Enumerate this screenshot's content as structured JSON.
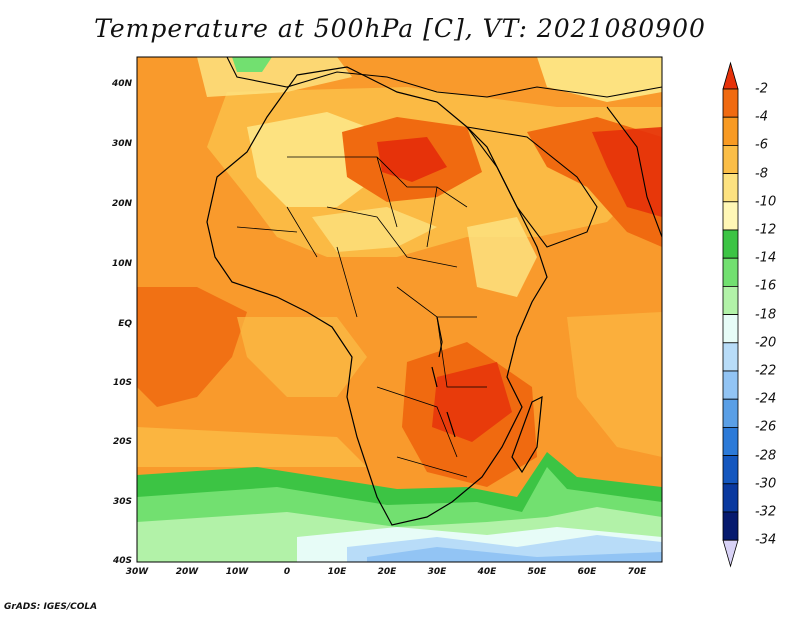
{
  "title": "Temperature at 500hPa [C], VT: 2021080900",
  "credit": "GrADS: IGES/COLA",
  "lat_labels": [
    "40N",
    "30N",
    "20N",
    "10N",
    "EQ",
    "10S",
    "20S",
    "30S",
    "40S"
  ],
  "lon_labels": [
    "30W",
    "20W",
    "10W",
    "0",
    "10E",
    "20E",
    "30E",
    "40E",
    "50E",
    "60E",
    "70E"
  ],
  "colorbar": {
    "labels": [
      "-2",
      "-4",
      "-6",
      "-8",
      "-10",
      "-12",
      "-14",
      "-16",
      "-18",
      "-20",
      "-22",
      "-24",
      "-26",
      "-28",
      "-30",
      "-32",
      "-34"
    ],
    "colors": [
      "#e6320a",
      "#f06a10",
      "#f89a22",
      "#fbbe47",
      "#fde280",
      "#fff7b6",
      "#3cc444",
      "#72e070",
      "#b2f2a8",
      "#e7fcf7",
      "#b8dcf8",
      "#92c4f4",
      "#5a9fe6",
      "#2c7ad8",
      "#1457bf",
      "#0a399f",
      "#061a6e",
      "#d8d2f6"
    ]
  },
  "layers": {
    "background": "#f99a2c",
    "warm_core_color": "#f06a10",
    "hot_core_color": "#e6320a",
    "mild_color": "#fbbe47",
    "light_color": "#fde280",
    "cold_band_colors": [
      "#3cc444",
      "#72e070",
      "#b2f2a8",
      "#e7fcf7",
      "#b8dcf8",
      "#92c4f4"
    ]
  }
}
